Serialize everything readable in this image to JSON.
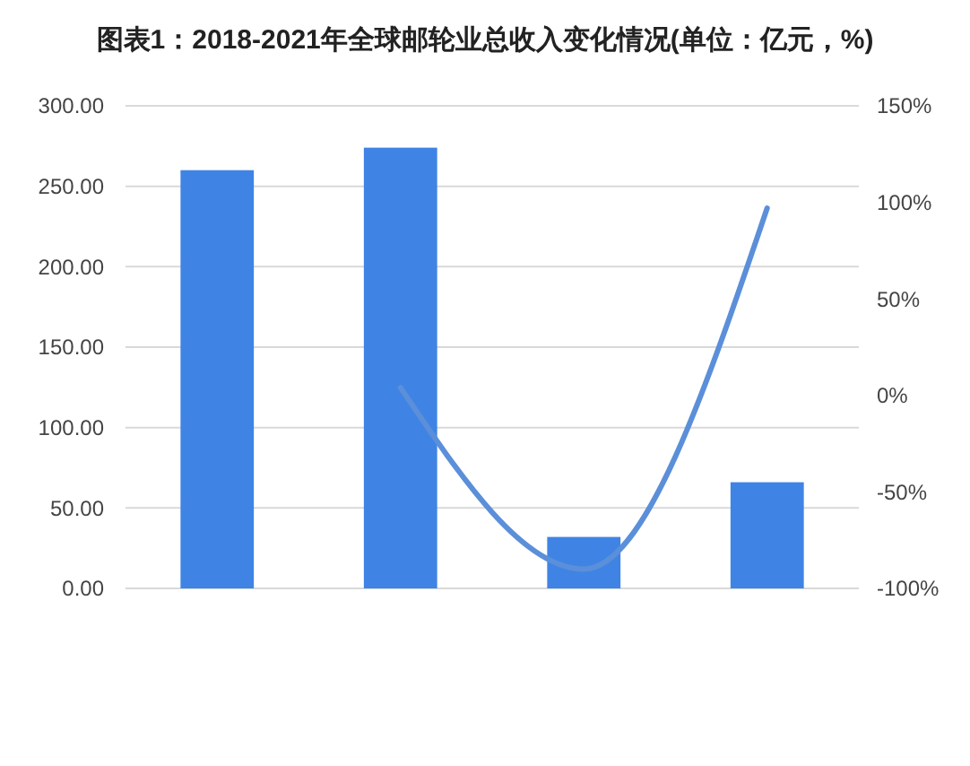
{
  "chart_data": {
    "type": "bar",
    "title": "图表1：2018-2021年全球邮轮业总收入变化情况(单位：亿元，%)",
    "categories": [
      null,
      null,
      null,
      null
    ],
    "series": [
      {
        "color": "#3f84e5",
        "values": [
          260,
          274,
          32,
          66
        ]
      },
      {
        "type": "line",
        "axis": "y2",
        "color": "#5b8fd9",
        "values": [
          null,
          4,
          -90,
          97
        ]
      }
    ],
    "ylim": [
      0,
      300
    ],
    "yticks": [
      {
        "value": 0,
        "label": "0.00"
      },
      {
        "value": 50,
        "label": "50.00"
      },
      {
        "value": 100,
        "label": "100.00"
      },
      {
        "value": 150,
        "label": "150.00"
      },
      {
        "value": 200,
        "label": "200.00"
      },
      {
        "value": 250,
        "label": "250.00"
      },
      {
        "value": 300,
        "label": "300.00"
      }
    ],
    "y2lim": [
      -100,
      150
    ],
    "y2ticks": [
      {
        "value": -100,
        "label": "-100%"
      },
      {
        "value": -50,
        "label": "-50%"
      },
      {
        "value": 0,
        "label": "0%"
      },
      {
        "value": 50,
        "label": "50%"
      },
      {
        "value": 100,
        "label": "100%"
      },
      {
        "value": 150,
        "label": "150%"
      }
    ],
    "grid": "y",
    "line_style": "solid",
    "marker": "none"
  }
}
